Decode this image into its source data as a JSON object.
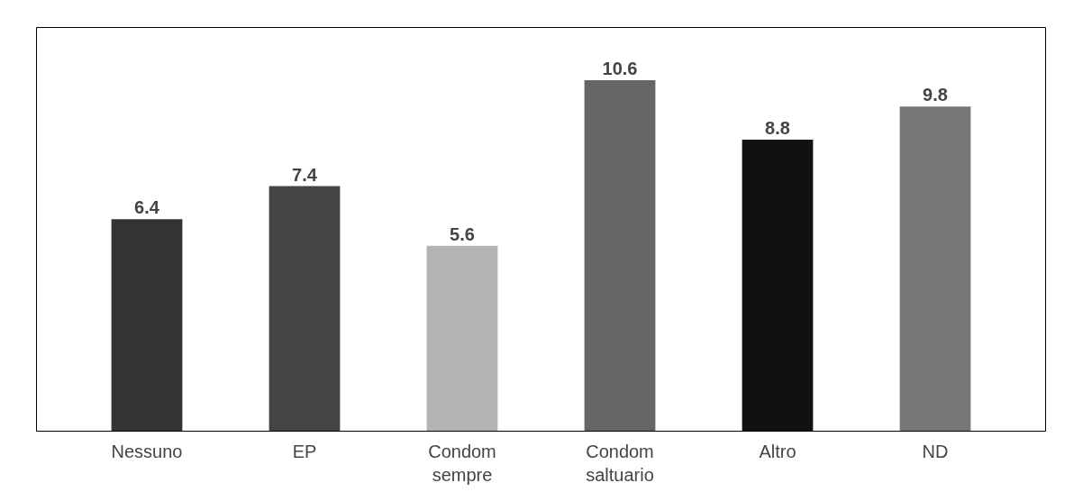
{
  "chart_data": {
    "type": "bar",
    "categories": [
      "Nessuno",
      "EP",
      "Condom\nsempre",
      "Condom\nsaltuario",
      "Altro",
      "ND"
    ],
    "values": [
      6.4,
      7.4,
      5.6,
      10.6,
      8.8,
      9.8
    ],
    "colors": [
      "#333333",
      "#444444",
      "#b3b3b3",
      "#666666",
      "#111111",
      "#777777"
    ],
    "data_labels": true,
    "grid": false
  }
}
